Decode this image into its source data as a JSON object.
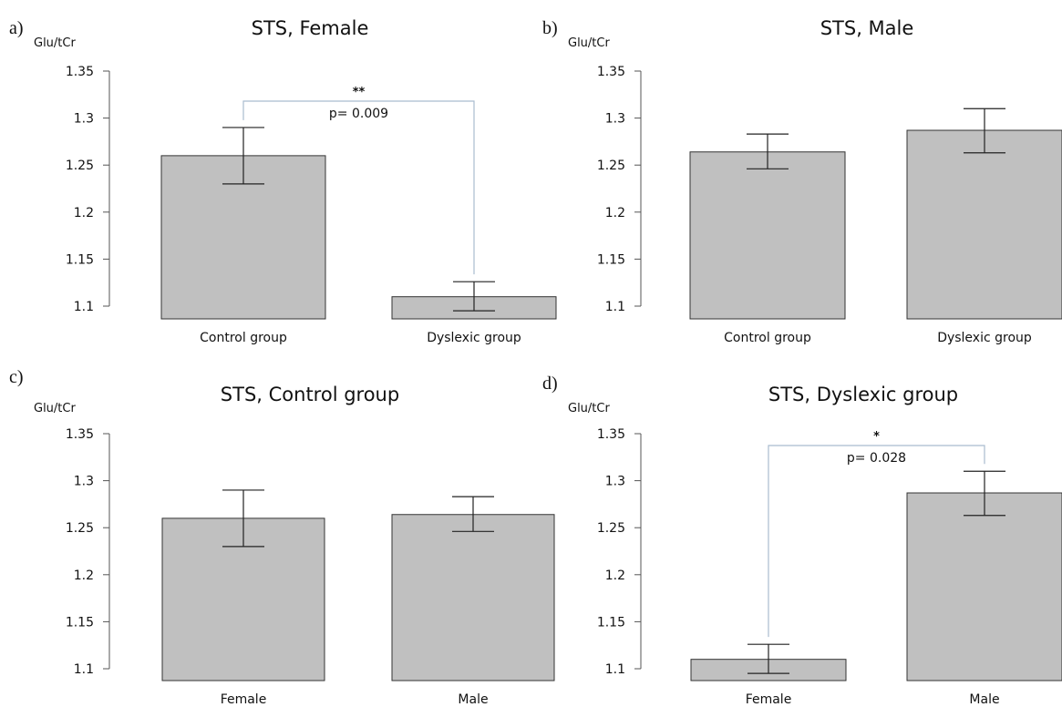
{
  "chart_data": [
    {
      "panel": "a)",
      "type": "bar",
      "title": "STS, Female",
      "ylabel": "Glu/tCr",
      "xlabel": "",
      "ylim": [
        1.1,
        1.35
      ],
      "yticks": [
        "1.35",
        "1.3",
        "1.25",
        "1.2",
        "1.15",
        "1.1"
      ],
      "categories": [
        "Control group",
        "Dyslexic group"
      ],
      "values": [
        1.26,
        1.11
      ],
      "error_low": [
        1.23,
        1.095
      ],
      "error_high": [
        1.29,
        1.126
      ],
      "annotation": {
        "stars": "**",
        "text": "p= 0.009",
        "between": [
          0,
          1
        ],
        "level": 1.318
      },
      "colors": {
        "bar": "#c0c0c0",
        "bar_edge": "#333333",
        "bracket": "#a9bccf"
      },
      "grid": false
    },
    {
      "panel": "b)",
      "type": "bar",
      "title": "STS, Male",
      "ylabel": "Glu/tCr",
      "xlabel": "",
      "ylim": [
        1.1,
        1.35
      ],
      "yticks": [
        "1.35",
        "1.3",
        "1.25",
        "1.2",
        "1.15",
        "1.1"
      ],
      "categories": [
        "Control group",
        "Dyslexic group"
      ],
      "values": [
        1.264,
        1.287
      ],
      "error_low": [
        1.246,
        1.263
      ],
      "error_high": [
        1.283,
        1.31
      ],
      "colors": {
        "bar": "#c0c0c0",
        "bar_edge": "#333333"
      },
      "grid": false
    },
    {
      "panel": "c)",
      "type": "bar",
      "title": "STS, Control group",
      "ylabel": "Glu/tCr",
      "xlabel": "",
      "ylim": [
        1.1,
        1.35
      ],
      "yticks": [
        "1.35",
        "1.3",
        "1.25",
        "1.2",
        "1.15",
        "1.1"
      ],
      "categories": [
        "Female",
        "Male"
      ],
      "values": [
        1.26,
        1.264
      ],
      "error_low": [
        1.23,
        1.246
      ],
      "error_high": [
        1.29,
        1.283
      ],
      "colors": {
        "bar": "#c0c0c0",
        "bar_edge": "#333333"
      },
      "grid": false
    },
    {
      "panel": "d)",
      "type": "bar",
      "title": "STS, Dyslexic group",
      "ylabel": "Glu/tCr",
      "xlabel": "",
      "ylim": [
        1.1,
        1.35
      ],
      "yticks": [
        "1.35",
        "1.3",
        "1.25",
        "1.2",
        "1.15",
        "1.1"
      ],
      "categories": [
        "Female",
        "Male"
      ],
      "values": [
        1.11,
        1.287
      ],
      "error_low": [
        1.095,
        1.263
      ],
      "error_high": [
        1.126,
        1.31
      ],
      "annotation": {
        "stars": "*",
        "text": "p= 0.028",
        "between": [
          0,
          1
        ],
        "level": 1.318
      },
      "colors": {
        "bar": "#c0c0c0",
        "bar_edge": "#333333",
        "bracket": "#a9bccf"
      },
      "grid": false
    }
  ]
}
